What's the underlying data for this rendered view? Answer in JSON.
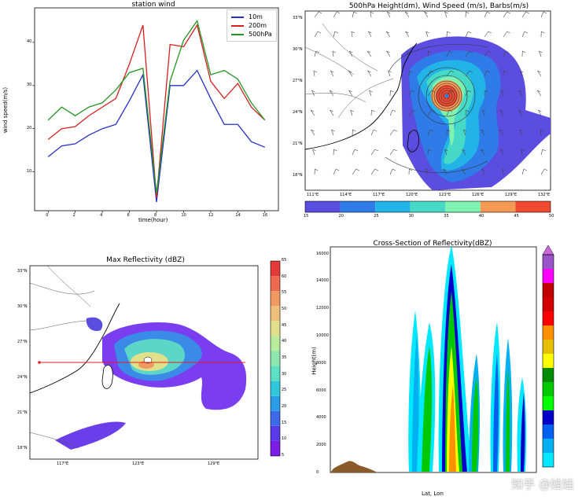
{
  "chart_data": [
    {
      "type": "line",
      "title": "station wind",
      "xlabel": "time(hour)",
      "ylabel": "wind speed(m/s)",
      "x": [
        0,
        1,
        2,
        3,
        4,
        5,
        6,
        7,
        8,
        9,
        10,
        11,
        12,
        13,
        14,
        15,
        16
      ],
      "xticks": [
        "0",
        "2",
        "4",
        "6",
        "8",
        "10",
        "12",
        "14",
        "16"
      ],
      "yticks": [
        "10",
        "20",
        "30",
        "40"
      ],
      "xlim": [
        -1,
        17
      ],
      "ylim": [
        1,
        48
      ],
      "legend_position": "top-right",
      "series": [
        {
          "name": "10m",
          "color": "#2530c8",
          "values": [
            13.5,
            16,
            16.5,
            18.5,
            20,
            21,
            26.5,
            32.5,
            3,
            30,
            30,
            33.5,
            27,
            21,
            21,
            17,
            15.7
          ]
        },
        {
          "name": "200m",
          "color": "#d62020",
          "values": [
            17.5,
            20,
            20.5,
            23,
            25,
            27,
            35,
            44,
            4,
            39.5,
            39,
            44,
            31,
            27,
            30.5,
            25,
            22
          ]
        },
        {
          "name": "500hPa",
          "color": "#239623",
          "values": [
            22,
            25,
            23,
            25,
            26,
            29,
            33,
            34,
            5,
            31,
            40.5,
            45,
            32.5,
            33.5,
            31.5,
            26,
            22
          ]
        }
      ]
    },
    {
      "type": "heatmap",
      "title": "500hPa Height(dm), Wind Speed (m/s), Barbs(m/s)",
      "lat_ticks": [
        "33°N",
        "30°N",
        "27°N",
        "24°N",
        "21°N",
        "18°N"
      ],
      "lon_ticks": [
        "111°E",
        "114°E",
        "117°E",
        "120°E",
        "123°E",
        "126°E",
        "129°E",
        "132°E"
      ],
      "colorbar_levels": [
        "15",
        "20",
        "25",
        "30",
        "35",
        "40",
        "45",
        "50"
      ],
      "colorbar_colors": [
        "#5a4de0",
        "#2f7be8",
        "#22b4e6",
        "#46d9c6",
        "#7ff2b0",
        "#f59a55",
        "#f04a30"
      ]
    },
    {
      "type": "heatmap",
      "title": "Max Reflectivity (dBZ)",
      "lat_ticks": [
        "33°N",
        "30°N",
        "27°N",
        "24°N",
        "21°N",
        "18°N"
      ],
      "lon_ticks": [
        "117°E",
        "123°E",
        "129°E"
      ],
      "colorbar_ticks": [
        "65",
        "60",
        "55",
        "50",
        "45",
        "40",
        "35",
        "30",
        "25",
        "20",
        "15",
        "10",
        "5"
      ],
      "colorbar_colors": [
        "#7a1ee6",
        "#5a3ae8",
        "#3c6ae8",
        "#2a9ce8",
        "#32c8dc",
        "#5ce0c4",
        "#8ce8ae",
        "#b8ec9c",
        "#e0e08a",
        "#eec07a",
        "#f09a62",
        "#ee6a4e",
        "#e43a3a"
      ]
    },
    {
      "type": "heatmap",
      "title": "Cross-Section of Reflectivity(dBZ)",
      "xlabel": "Lat, Lon",
      "ylabel": "Height(m)",
      "yticks": [
        "0",
        "2000",
        "4000",
        "6000",
        "8000",
        "10000",
        "12000",
        "14000",
        "16000"
      ],
      "ylim": [
        0,
        16500
      ],
      "colorbar_colors": [
        "#00e8ff",
        "#00b0f0",
        "#0060f0",
        "#0000c8",
        "#00ff00",
        "#00c800",
        "#008c00",
        "#ffff00",
        "#e6c000",
        "#ff9000",
        "#ff0000",
        "#d20000",
        "#c00000",
        "#ff00ff",
        "#9a55c8"
      ]
    }
  ],
  "watermark": "知乎 @娃娃"
}
